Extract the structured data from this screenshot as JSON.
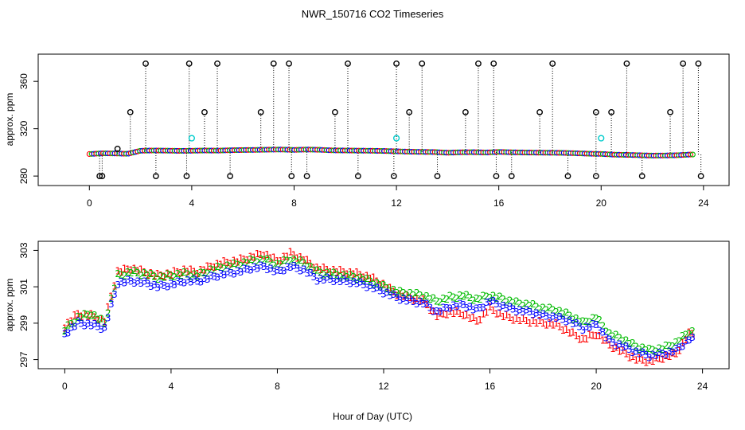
{
  "chart_data": [
    {
      "type": "scatter",
      "title": "NWR_150716  CO2 Timeseries",
      "xlabel": "",
      "ylabel": "approx. ppm",
      "xlim": [
        -2,
        25
      ],
      "ylim": [
        272,
        383
      ],
      "xticks": [
        0,
        4,
        8,
        12,
        16,
        20,
        24
      ],
      "yticks": [
        280,
        320,
        360
      ],
      "x": [
        0,
        0.5,
        1,
        1.5,
        2,
        2.5,
        3,
        3.5,
        4,
        4.5,
        5,
        5.5,
        6,
        6.5,
        7,
        7.5,
        8,
        8.5,
        9,
        9.5,
        10,
        10.5,
        11,
        11.5,
        12,
        12.5,
        13,
        13.5,
        14,
        14.5,
        15,
        15.5,
        16,
        16.5,
        17,
        17.5,
        18,
        18.5,
        19,
        19.5,
        20,
        20.5,
        21,
        21.5,
        22,
        22.5,
        23,
        23.5
      ],
      "series": [
        {
          "values": [
            298.6,
            299.2,
            299.1,
            298.8,
            301.4,
            301.6,
            301.5,
            301.3,
            301.4,
            301.6,
            301.5,
            301.8,
            302.0,
            302.1,
            302.3,
            302.4,
            302.1,
            302.4,
            302.2,
            301.7,
            301.6,
            301.5,
            301.4,
            301.2,
            300.9,
            300.6,
            300.4,
            300.3,
            299.7,
            300.1,
            300.2,
            299.9,
            300.4,
            300.1,
            299.9,
            299.8,
            299.7,
            299.6,
            299.3,
            298.9,
            298.7,
            298.1,
            297.9,
            297.6,
            297.3,
            297.4,
            297.6,
            298.2
          ]
        },
        {
          "x": [
            0.4,
            1.1,
            1.6,
            2.2,
            3.9,
            4.5,
            5.0,
            6.7,
            7.2,
            7.8,
            9.6,
            10.1,
            12.0,
            12.5,
            13.0,
            14.7,
            15.2,
            15.8,
            17.6,
            18.1,
            19.8,
            20.4,
            21.0,
            22.7,
            23.2,
            23.8
          ],
          "values": [
            280,
            303,
            334,
            375,
            375,
            334,
            375,
            334,
            375,
            375,
            334,
            375,
            375,
            334,
            375,
            334,
            375,
            375,
            334,
            375,
            334,
            334,
            375,
            334,
            375,
            375
          ]
        },
        {
          "x": [
            4.0,
            12.0,
            20.0
          ],
          "values": [
            312,
            312,
            312
          ]
        }
      ]
    },
    {
      "type": "scatter",
      "title": "",
      "xlabel": "Hour of Day (UTC)",
      "ylabel": "approx. ppm",
      "xlim": [
        -1,
        25
      ],
      "ylim": [
        296.5,
        303.5
      ],
      "xticks": [
        0,
        4,
        8,
        12,
        16,
        20,
        24
      ],
      "yticks": [
        297,
        299,
        301,
        303
      ],
      "x": [
        0,
        0.5,
        1,
        1.5,
        2,
        2.5,
        3,
        3.5,
        4,
        4.5,
        5,
        5.5,
        6,
        6.5,
        7,
        7.5,
        8,
        8.5,
        9,
        9.5,
        10,
        10.5,
        11,
        11.5,
        12,
        12.5,
        13,
        13.5,
        14,
        14.5,
        15,
        15.5,
        16,
        16.5,
        17,
        17.5,
        18,
        18.5,
        19,
        19.5,
        20,
        20.5,
        21,
        21.5,
        22,
        22.5,
        23,
        23.5
      ],
      "series": [
        {
          "marker": "1",
          "values": [
            298.8,
            299.5,
            299.4,
            299.1,
            301.8,
            302.0,
            301.8,
            301.6,
            301.7,
            301.9,
            301.8,
            302.1,
            302.3,
            302.4,
            302.6,
            302.8,
            302.4,
            302.8,
            302.5,
            302.0,
            301.9,
            301.8,
            301.7,
            301.5,
            301.1,
            300.6,
            300.4,
            300.2,
            299.4,
            299.6,
            299.5,
            299.1,
            299.8,
            299.4,
            299.2,
            299.1,
            299.0,
            298.9,
            298.5,
            298.1,
            298.4,
            297.8,
            297.4,
            297.0,
            296.9,
            297.1,
            297.3,
            298.4
          ]
        },
        {
          "marker": "2",
          "values": [
            298.6,
            299.3,
            299.5,
            299.0,
            301.6,
            301.8,
            301.7,
            301.5,
            301.6,
            301.7,
            301.6,
            301.9,
            302.1,
            302.2,
            302.4,
            302.5,
            302.2,
            302.5,
            302.3,
            301.8,
            301.7,
            301.6,
            301.5,
            301.3,
            301.0,
            300.7,
            300.6,
            300.5,
            300.2,
            300.4,
            300.5,
            300.3,
            300.5,
            300.3,
            300.1,
            300.0,
            299.8,
            299.7,
            299.4,
            299.0,
            299.3,
            298.4,
            298.1,
            297.7,
            297.5,
            297.6,
            297.9,
            298.5
          ]
        },
        {
          "marker": "3",
          "values": [
            298.4,
            299.0,
            298.9,
            298.7,
            301.2,
            301.3,
            301.2,
            301.0,
            301.1,
            301.3,
            301.3,
            301.5,
            301.7,
            301.8,
            302.0,
            302.1,
            301.8,
            302.1,
            301.9,
            301.4,
            301.4,
            301.3,
            301.2,
            301.0,
            300.7,
            300.4,
            300.2,
            300.1,
            299.6,
            299.9,
            300.0,
            299.7,
            300.2,
            299.9,
            299.7,
            299.6,
            299.4,
            299.3,
            299.1,
            298.7,
            298.9,
            298.0,
            297.7,
            297.4,
            297.2,
            297.3,
            297.5,
            298.1
          ]
        }
      ]
    }
  ],
  "colors": {
    "top_main": [
      "#ff0000",
      "#00bb00",
      "#0000ff"
    ],
    "top_outliers": "#000000",
    "top_special": "#00cccc",
    "bottom_series": [
      "#ff0000",
      "#00bb00",
      "#0000ff"
    ]
  }
}
